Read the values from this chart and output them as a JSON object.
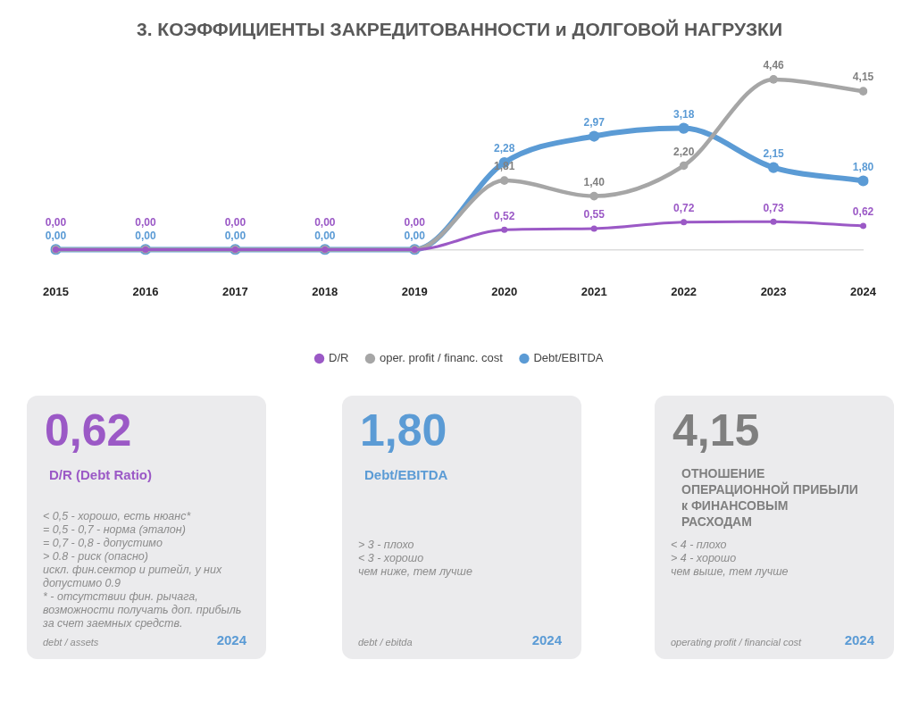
{
  "chart_data": [
    {
      "type": "line",
      "title": "3. КОЭФФИЦИЕНТЫ ЗАКРЕДИТОВАННОСТИ и ДОЛГОВОЙ НАГРУЗКИ",
      "categories": [
        "2015",
        "2016",
        "2017",
        "2018",
        "2019",
        "2020",
        "2021",
        "2022",
        "2023",
        "2024"
      ],
      "series": [
        {
          "name": "D/R",
          "color": "#9b59c6",
          "values": [
            0,
            0,
            0,
            0,
            0,
            0.52,
            0.55,
            0.72,
            0.73,
            0.62
          ],
          "value_labels": [
            "0,00",
            "0,00",
            "0,00",
            "0,00",
            "0,00",
            "0,52",
            "0,55",
            "0,72",
            "0,73",
            "0,62"
          ]
        },
        {
          "name": "oper. profit / financ. cost",
          "color": "#a6a6a6",
          "values": [
            0,
            0,
            0,
            0,
            0,
            1.81,
            1.4,
            2.2,
            4.46,
            4.15
          ],
          "value_labels": [
            null,
            null,
            null,
            null,
            null,
            "1,81",
            "1,40",
            "2,20",
            "4,46",
            "4,15"
          ]
        },
        {
          "name": "Debt/EBITDA",
          "color": "#5b9bd5",
          "values": [
            0,
            0,
            0,
            0,
            0,
            2.28,
            2.97,
            3.18,
            2.15,
            1.8
          ],
          "value_labels": [
            "0,00",
            "0,00",
            "0,00",
            "0,00",
            "0,00",
            "2,28",
            "2,97",
            "3,18",
            "2,15",
            "1,80"
          ]
        }
      ],
      "marker": "circle",
      "legend": "bottom",
      "grid": false
    },
    {
      "type": "other",
      "title": "0,62",
      "subtitle": "D/R (Debt Ratio)",
      "color": "#9b59c6",
      "annotations": [
        "< 0,5 - хорошо, есть нюанс*",
        "= 0,5 - 0,7 - норма (эталон)",
        "= 0,7 - 0,8 - допустимо",
        "> 0.8 - риск (опасно)",
        "искл. фин.сектор и ритейл, у них",
        "допустимо 0.9",
        "* - отсутствии фин. рычага,",
        "возможности получать доп. прибыль",
        "за счет заемных средств.",
        "debt / assets",
        "2024"
      ]
    },
    {
      "type": "other",
      "title": "1,80",
      "subtitle": "Debt/EBITDA",
      "color": "#5b9bd5",
      "annotations": [
        "> 3 - плохо",
        "< 3 - хорошо",
        "чем ниже, тем лучше",
        "debt / ebitda",
        "2024"
      ]
    },
    {
      "type": "other",
      "title": "4,15",
      "subtitle": "ОТНОШЕНИЕ ОПЕРАЦИОННОЙ ПРИБЫЛИ к ФИНАНСОВЫМ РАСХОДАМ",
      "color": "#7f7f7f",
      "annotations": [
        "< 4 - плохо",
        "> 4 - хорошо",
        "чем выше, тем лучше",
        "operating profit / financial cost",
        "2024"
      ]
    }
  ]
}
